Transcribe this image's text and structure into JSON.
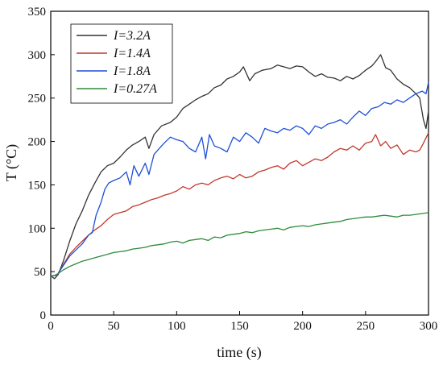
{
  "chart_data": {
    "type": "line",
    "title": "",
    "xlabel": "time (s)",
    "ylabel": "T (°C)",
    "xlim": [
      0,
      300
    ],
    "ylim": [
      0,
      350
    ],
    "xticks": [
      0,
      50,
      100,
      150,
      200,
      250,
      300
    ],
    "yticks": [
      0,
      50,
      100,
      150,
      200,
      250,
      300,
      350
    ],
    "grid": false,
    "legend_position": "top-left",
    "series": [
      {
        "name": "I=3.2A",
        "color": "#333333",
        "points": [
          [
            0,
            45
          ],
          [
            3,
            42
          ],
          [
            6,
            47
          ],
          [
            10,
            62
          ],
          [
            15,
            85
          ],
          [
            20,
            105
          ],
          [
            25,
            120
          ],
          [
            30,
            138
          ],
          [
            35,
            152
          ],
          [
            40,
            165
          ],
          [
            45,
            172
          ],
          [
            50,
            175
          ],
          [
            55,
            182
          ],
          [
            60,
            190
          ],
          [
            65,
            196
          ],
          [
            70,
            200
          ],
          [
            75,
            205
          ],
          [
            78,
            192
          ],
          [
            82,
            208
          ],
          [
            88,
            218
          ],
          [
            95,
            222
          ],
          [
            100,
            228
          ],
          [
            105,
            238
          ],
          [
            110,
            243
          ],
          [
            115,
            248
          ],
          [
            120,
            252
          ],
          [
            125,
            255
          ],
          [
            130,
            262
          ],
          [
            135,
            265
          ],
          [
            140,
            272
          ],
          [
            145,
            275
          ],
          [
            150,
            280
          ],
          [
            153,
            286
          ],
          [
            158,
            270
          ],
          [
            162,
            278
          ],
          [
            168,
            282
          ],
          [
            175,
            284
          ],
          [
            180,
            288
          ],
          [
            185,
            286
          ],
          [
            190,
            284
          ],
          [
            195,
            287
          ],
          [
            200,
            286
          ],
          [
            205,
            280
          ],
          [
            210,
            275
          ],
          [
            215,
            278
          ],
          [
            220,
            274
          ],
          [
            225,
            273
          ],
          [
            230,
            270
          ],
          [
            235,
            275
          ],
          [
            240,
            272
          ],
          [
            245,
            276
          ],
          [
            250,
            282
          ],
          [
            255,
            287
          ],
          [
            258,
            292
          ],
          [
            262,
            300
          ],
          [
            266,
            285
          ],
          [
            270,
            282
          ],
          [
            275,
            272
          ],
          [
            280,
            266
          ],
          [
            285,
            262
          ],
          [
            290,
            255
          ],
          [
            293,
            250
          ],
          [
            296,
            225
          ],
          [
            298,
            215
          ],
          [
            300,
            235
          ]
        ]
      },
      {
        "name": "I=1.4A",
        "color": "#c0392b",
        "points": [
          [
            0,
            45
          ],
          [
            5,
            46
          ],
          [
            10,
            58
          ],
          [
            15,
            70
          ],
          [
            20,
            78
          ],
          [
            25,
            85
          ],
          [
            30,
            92
          ],
          [
            35,
            98
          ],
          [
            40,
            103
          ],
          [
            45,
            110
          ],
          [
            50,
            116
          ],
          [
            55,
            118
          ],
          [
            60,
            120
          ],
          [
            65,
            125
          ],
          [
            70,
            127
          ],
          [
            75,
            130
          ],
          [
            80,
            133
          ],
          [
            85,
            135
          ],
          [
            90,
            138
          ],
          [
            95,
            140
          ],
          [
            100,
            143
          ],
          [
            105,
            148
          ],
          [
            110,
            145
          ],
          [
            115,
            150
          ],
          [
            120,
            152
          ],
          [
            125,
            150
          ],
          [
            130,
            155
          ],
          [
            135,
            158
          ],
          [
            140,
            160
          ],
          [
            145,
            157
          ],
          [
            150,
            162
          ],
          [
            155,
            158
          ],
          [
            160,
            160
          ],
          [
            165,
            165
          ],
          [
            170,
            167
          ],
          [
            175,
            170
          ],
          [
            180,
            172
          ],
          [
            185,
            168
          ],
          [
            190,
            175
          ],
          [
            195,
            178
          ],
          [
            200,
            172
          ],
          [
            205,
            176
          ],
          [
            210,
            180
          ],
          [
            215,
            178
          ],
          [
            220,
            182
          ],
          [
            225,
            188
          ],
          [
            230,
            192
          ],
          [
            235,
            190
          ],
          [
            240,
            195
          ],
          [
            245,
            190
          ],
          [
            250,
            198
          ],
          [
            255,
            200
          ],
          [
            258,
            208
          ],
          [
            262,
            195
          ],
          [
            266,
            200
          ],
          [
            270,
            192
          ],
          [
            275,
            196
          ],
          [
            280,
            185
          ],
          [
            285,
            190
          ],
          [
            290,
            188
          ],
          [
            293,
            190
          ],
          [
            296,
            198
          ],
          [
            300,
            210
          ]
        ]
      },
      {
        "name": "I=1.8A",
        "color": "#1f4fd6",
        "points": [
          [
            0,
            45
          ],
          [
            5,
            46
          ],
          [
            10,
            57
          ],
          [
            15,
            68
          ],
          [
            20,
            75
          ],
          [
            25,
            82
          ],
          [
            30,
            92
          ],
          [
            33,
            95
          ],
          [
            36,
            115
          ],
          [
            40,
            130
          ],
          [
            43,
            145
          ],
          [
            46,
            152
          ],
          [
            50,
            155
          ],
          [
            55,
            158
          ],
          [
            60,
            165
          ],
          [
            63,
            150
          ],
          [
            66,
            172
          ],
          [
            70,
            160
          ],
          [
            75,
            175
          ],
          [
            78,
            162
          ],
          [
            82,
            185
          ],
          [
            85,
            190
          ],
          [
            90,
            198
          ],
          [
            95,
            205
          ],
          [
            100,
            202
          ],
          [
            105,
            200
          ],
          [
            110,
            192
          ],
          [
            115,
            188
          ],
          [
            120,
            205
          ],
          [
            123,
            180
          ],
          [
            126,
            208
          ],
          [
            130,
            195
          ],
          [
            135,
            192
          ],
          [
            140,
            188
          ],
          [
            145,
            205
          ],
          [
            150,
            200
          ],
          [
            155,
            210
          ],
          [
            160,
            205
          ],
          [
            165,
            198
          ],
          [
            170,
            215
          ],
          [
            175,
            212
          ],
          [
            180,
            210
          ],
          [
            185,
            215
          ],
          [
            190,
            213
          ],
          [
            195,
            218
          ],
          [
            200,
            215
          ],
          [
            205,
            208
          ],
          [
            210,
            218
          ],
          [
            215,
            215
          ],
          [
            220,
            220
          ],
          [
            225,
            222
          ],
          [
            230,
            225
          ],
          [
            235,
            220
          ],
          [
            240,
            228
          ],
          [
            245,
            235
          ],
          [
            250,
            230
          ],
          [
            255,
            238
          ],
          [
            260,
            240
          ],
          [
            265,
            245
          ],
          [
            270,
            243
          ],
          [
            275,
            248
          ],
          [
            280,
            245
          ],
          [
            285,
            250
          ],
          [
            290,
            255
          ],
          [
            295,
            258
          ],
          [
            298,
            255
          ],
          [
            300,
            268
          ]
        ]
      },
      {
        "name": "I=0.27A",
        "color": "#2e8b3a",
        "points": [
          [
            0,
            44
          ],
          [
            5,
            47
          ],
          [
            10,
            52
          ],
          [
            15,
            56
          ],
          [
            20,
            59
          ],
          [
            25,
            62
          ],
          [
            30,
            64
          ],
          [
            35,
            66
          ],
          [
            40,
            68
          ],
          [
            45,
            70
          ],
          [
            50,
            72
          ],
          [
            55,
            73
          ],
          [
            60,
            74
          ],
          [
            65,
            76
          ],
          [
            70,
            77
          ],
          [
            75,
            78
          ],
          [
            80,
            80
          ],
          [
            85,
            81
          ],
          [
            90,
            82
          ],
          [
            95,
            84
          ],
          [
            100,
            85
          ],
          [
            105,
            83
          ],
          [
            110,
            86
          ],
          [
            115,
            87
          ],
          [
            120,
            88
          ],
          [
            125,
            86
          ],
          [
            130,
            90
          ],
          [
            135,
            89
          ],
          [
            140,
            92
          ],
          [
            145,
            93
          ],
          [
            150,
            94
          ],
          [
            155,
            96
          ],
          [
            160,
            95
          ],
          [
            165,
            97
          ],
          [
            170,
            98
          ],
          [
            175,
            99
          ],
          [
            180,
            100
          ],
          [
            185,
            98
          ],
          [
            190,
            101
          ],
          [
            195,
            102
          ],
          [
            200,
            103
          ],
          [
            205,
            102
          ],
          [
            210,
            104
          ],
          [
            215,
            105
          ],
          [
            220,
            106
          ],
          [
            225,
            107
          ],
          [
            230,
            108
          ],
          [
            235,
            110
          ],
          [
            240,
            111
          ],
          [
            245,
            112
          ],
          [
            250,
            113
          ],
          [
            255,
            113
          ],
          [
            260,
            114
          ],
          [
            265,
            115
          ],
          [
            270,
            114
          ],
          [
            275,
            113
          ],
          [
            280,
            115
          ],
          [
            285,
            115
          ],
          [
            290,
            116
          ],
          [
            295,
            117
          ],
          [
            300,
            118
          ]
        ]
      }
    ]
  }
}
